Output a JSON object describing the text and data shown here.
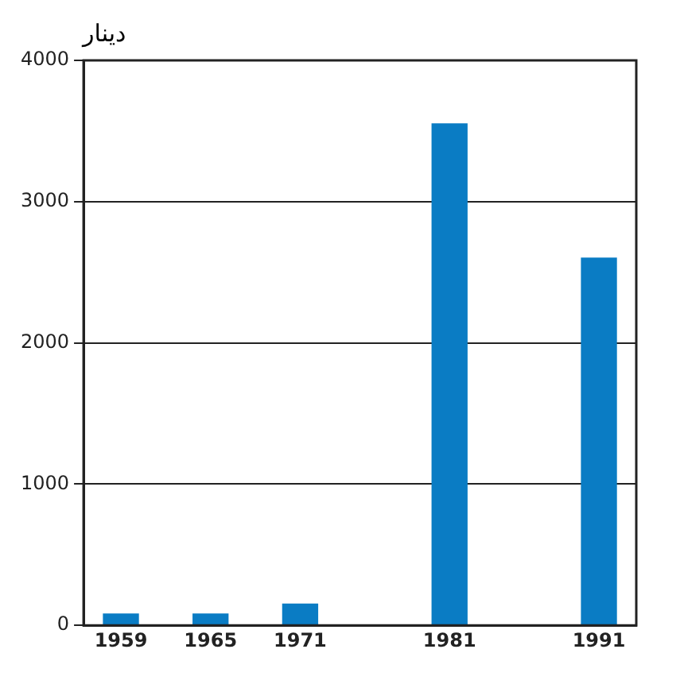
{
  "chart_data": {
    "type": "bar",
    "ylabel": "دينار",
    "x": [
      1959,
      1965,
      1971,
      1981,
      1991
    ],
    "values": [
      80,
      80,
      150,
      3550,
      2600
    ],
    "color": "#0a7cc4",
    "xlim": [
      1956.5,
      1993.5
    ],
    "xticks": [
      1959,
      1965,
      1971,
      1981,
      1991
    ],
    "ylim": [
      0,
      4000
    ],
    "yticks": [
      0,
      1000,
      2000,
      3000,
      4000
    ],
    "grid": "y",
    "legend": false
  }
}
